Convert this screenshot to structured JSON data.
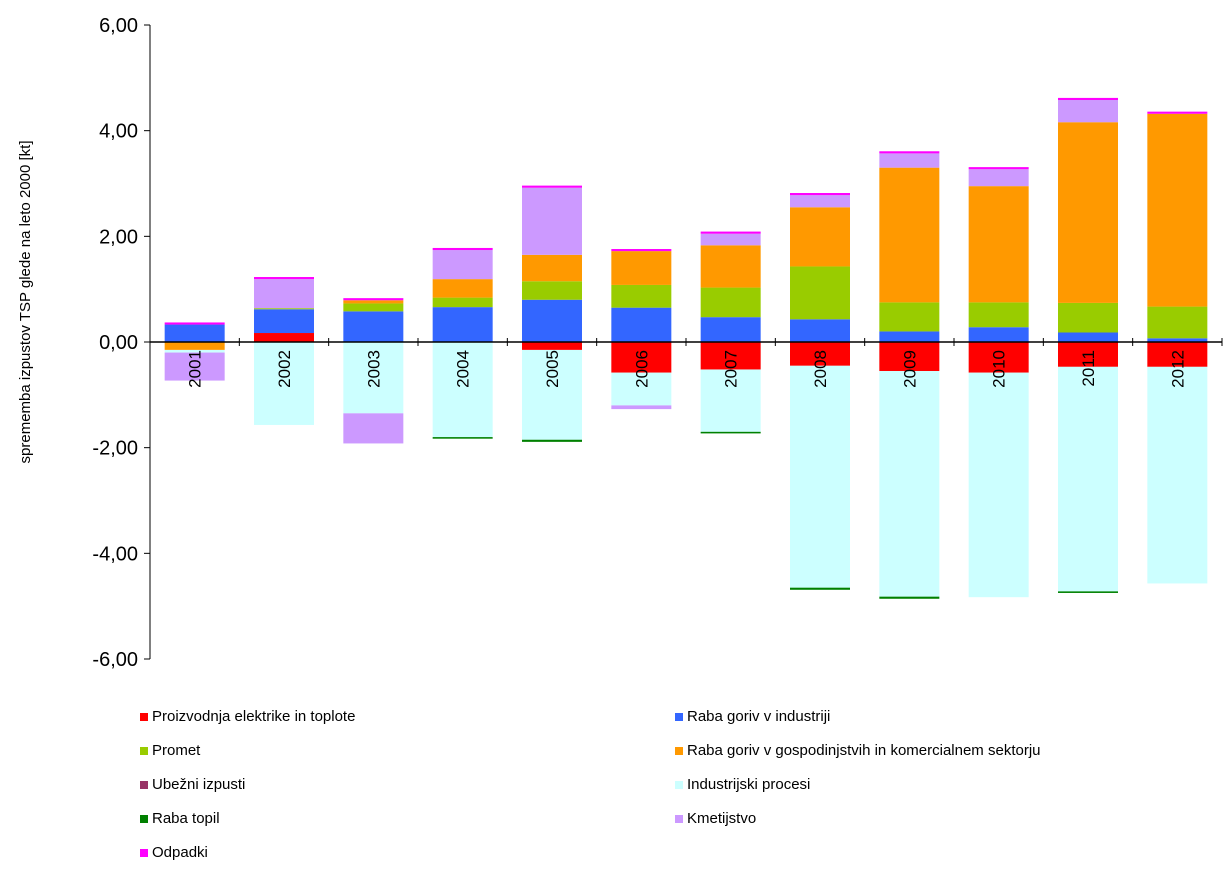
{
  "chart_data": {
    "type": "bar",
    "stacked": true,
    "ylabel": "sprememba izpustov TSP glede na leto 2000 [kt]",
    "xlabel": "",
    "ylim": [
      -6,
      6
    ],
    "yticks": [
      "6,00",
      "4,00",
      "2,00",
      "0,00",
      "-2,00",
      "-4,00",
      "-6,00"
    ],
    "ytick_values": [
      6,
      4,
      2,
      0,
      -2,
      -4,
      -6
    ],
    "categories": [
      "2001",
      "2002",
      "2003",
      "2004",
      "2005",
      "2006",
      "2007",
      "2008",
      "2009",
      "2010",
      "2011",
      "2012"
    ],
    "legend_position": "bottom",
    "series": [
      {
        "name": "Proizvodnja elektrike in toplote",
        "color": "#ff0000",
        "values": [
          0.0,
          0.17,
          0.0,
          0.0,
          -0.15,
          -0.58,
          -0.52,
          -0.45,
          -0.55,
          -0.58,
          -0.47,
          -0.47
        ]
      },
      {
        "name": "Raba goriv v industriji",
        "color": "#3366ff",
        "values": [
          0.33,
          0.45,
          0.58,
          0.66,
          0.8,
          0.65,
          0.47,
          0.43,
          0.2,
          0.28,
          0.18,
          0.07
        ]
      },
      {
        "name": "Promet",
        "color": "#99cc00",
        "values": [
          0.0,
          0.02,
          0.15,
          0.18,
          0.35,
          0.43,
          0.56,
          1.0,
          0.55,
          0.47,
          0.56,
          0.6
        ]
      },
      {
        "name": "Raba goriv v gospodinjstvih in komercialnem sektorju",
        "color": "#ff9900",
        "values": [
          -0.15,
          0.0,
          0.06,
          0.35,
          0.5,
          0.64,
          0.8,
          1.12,
          2.55,
          2.2,
          3.42,
          3.65
        ]
      },
      {
        "name": "Ubežni izpusti",
        "color": "#993366",
        "values": [
          0.0,
          0.0,
          0.0,
          0.0,
          0.0,
          0.0,
          0.0,
          0.0,
          0.0,
          0.0,
          0.0,
          0.0
        ]
      },
      {
        "name": "Industrijski procesi",
        "color": "#ccffff",
        "values": [
          -0.05,
          -1.57,
          -1.35,
          -1.8,
          -1.7,
          -0.62,
          -1.18,
          -4.2,
          -4.27,
          -4.25,
          -4.25,
          -4.1
        ]
      },
      {
        "name": "Raba topil",
        "color": "#008000",
        "values": [
          0.0,
          0.0,
          0.0,
          -0.03,
          -0.04,
          0.0,
          -0.03,
          -0.04,
          -0.04,
          0.0,
          -0.03,
          0.0
        ]
      },
      {
        "name": "Kmetijstvo",
        "color": "#cc99ff",
        "values": [
          -0.53,
          0.55,
          -0.57,
          0.55,
          1.27,
          -0.07,
          0.22,
          0.23,
          0.27,
          0.32,
          0.42,
          0.0
        ]
      },
      {
        "name": "Odpadki",
        "color": "#ff00ff",
        "values": [
          0.04,
          0.04,
          0.04,
          0.04,
          0.04,
          0.04,
          0.04,
          0.04,
          0.04,
          0.04,
          0.04,
          0.04
        ]
      }
    ],
    "legend_order": [
      0,
      1,
      2,
      3,
      4,
      5,
      6,
      7,
      8
    ]
  }
}
